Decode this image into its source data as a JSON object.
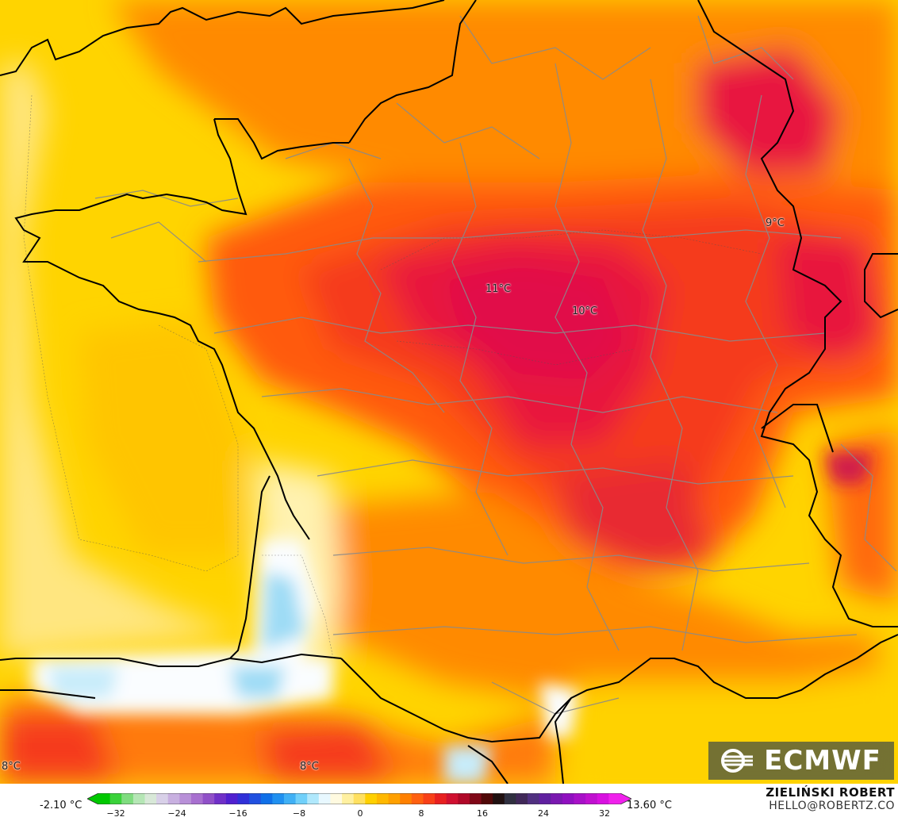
{
  "map": {
    "point_labels": [
      {
        "text": "11°C"
      },
      {
        "text": "10°C"
      },
      {
        "text": "9°C"
      },
      {
        "text": "8°C"
      },
      {
        "text": "8°C"
      }
    ],
    "fill_colors": [
      "#ffe680",
      "#ffd200",
      "#ffb000",
      "#ff8a00",
      "#ff5a10",
      "#f53a1a",
      "#e8183c",
      "#d01e4c",
      "#fafdff",
      "#c8ecfa",
      "#9edcf5"
    ]
  },
  "logo": {
    "text": "ECMWF",
    "icon": "ecmwf-logo-icon"
  },
  "colorbar": {
    "min_label": "-2.10 °C",
    "max_label": "13.60 °C",
    "ticks": [
      "−32",
      "−24",
      "−16",
      "−8",
      "0",
      "8",
      "16",
      "24",
      "32"
    ],
    "range": [
      -32,
      32
    ],
    "colors": [
      "#00c800",
      "#3ad23a",
      "#7fdc7f",
      "#b5e6b5",
      "#d8e8d8",
      "#d8d0e8",
      "#c8b0e0",
      "#b890d8",
      "#a870d0",
      "#9050c8",
      "#7030c8",
      "#5020d0",
      "#3030d8",
      "#2050e0",
      "#1070e8",
      "#2090f0",
      "#40b0f5",
      "#70d0fa",
      "#b0e8fc",
      "#e8f8ff",
      "#fffae0",
      "#fff0a0",
      "#ffe060",
      "#ffd000",
      "#ffb800",
      "#ffa000",
      "#ff8000",
      "#ff6010",
      "#f84018",
      "#e82020",
      "#d01030",
      "#b00828",
      "#800818",
      "#500808",
      "#201010",
      "#303040",
      "#402858",
      "#503080",
      "#6020a0",
      "#7a18b0",
      "#9010c0",
      "#a810c8",
      "#c010d0",
      "#d810e0",
      "#f020ec"
    ]
  },
  "author": {
    "name": "ZIELIŃSKI ROBERT",
    "email": "HELLO@ROBERTZ.CO"
  }
}
